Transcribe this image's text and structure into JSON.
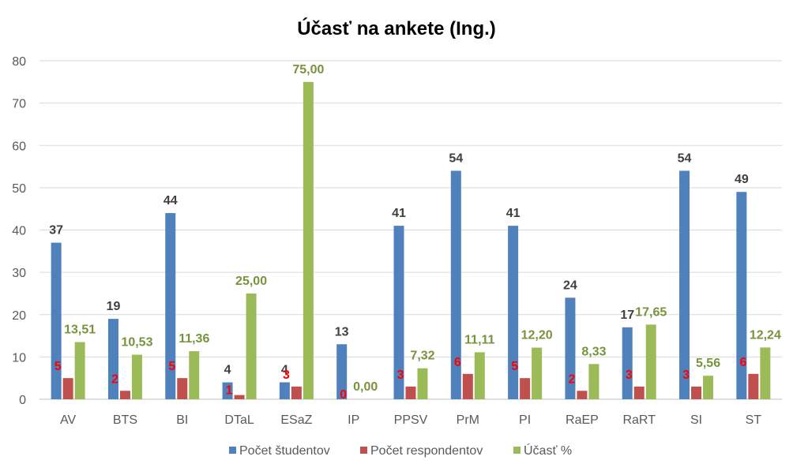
{
  "chart_data": {
    "type": "bar",
    "title": "Účasť na ankete (Ing.)",
    "xlabel": "",
    "ylabel": "",
    "ylim": [
      0,
      80
    ],
    "yticks": [
      "0",
      "10",
      "20",
      "30",
      "40",
      "50",
      "60",
      "70",
      "80"
    ],
    "grid": true,
    "legend_position": "bottom",
    "categories": [
      "AV",
      "BTS",
      "BI",
      "DTaL",
      "ESaZ",
      "IP",
      "PPSV",
      "PrM",
      "PI",
      "RaEP",
      "RaRT",
      "SI",
      "ST"
    ],
    "series": [
      {
        "name": "Počet študentov",
        "color": "#4F81BD",
        "label_color": "#404040",
        "values": [
          37,
          19,
          44,
          4,
          4,
          13,
          41,
          54,
          41,
          24,
          17,
          54,
          49
        ],
        "labels": [
          "37",
          "19",
          "44",
          "4",
          "4",
          "13",
          "41",
          "54",
          "41",
          "24",
          "17",
          "54",
          "49"
        ]
      },
      {
        "name": "Počet respondentov",
        "color": "#C0504D",
        "label_color": "#FF0000",
        "values": [
          5,
          2,
          5,
          1,
          3,
          0,
          3,
          6,
          5,
          2,
          3,
          3,
          6
        ],
        "labels": [
          "5",
          "2",
          "5",
          "1",
          "3",
          "0",
          "3",
          "6",
          "5",
          "2",
          "3",
          "3",
          "6"
        ]
      },
      {
        "name": "Účasť %",
        "color": "#9BBB59",
        "label_color": "#77933C",
        "values": [
          13.51,
          10.53,
          11.36,
          25.0,
          75.0,
          0.0,
          7.32,
          11.11,
          12.2,
          8.33,
          17.65,
          5.56,
          12.24
        ],
        "labels": [
          "13,51",
          "10,53",
          "11,36",
          "25,00",
          "75,00",
          "0,00",
          "7,32",
          "11,11",
          "12,20",
          "8,33",
          "17,65",
          "5,56",
          "12,24"
        ]
      }
    ]
  }
}
